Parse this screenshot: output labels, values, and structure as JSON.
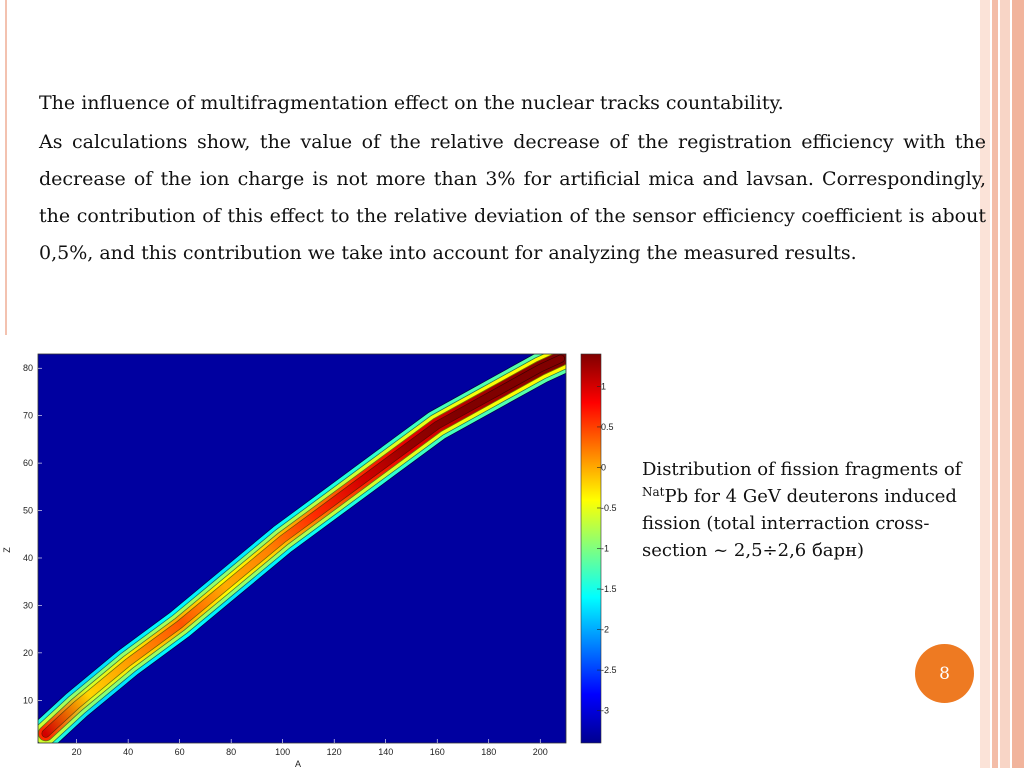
{
  "slide": {
    "heading": "The influence of multifragmentation  effect on the nuclear tracks countability.",
    "paragraph": "As calculations show, the value of the relative decrease of the registration efficiency with the decrease of the ion charge is not more than 3% for artificial mica and lavsan. Correspondingly, the contribution of this effect to the relative deviation of the sensor efficiency coefficient is about 0,5%, and this contribution we take into account for analyzing the measured results.",
    "caption_before": "Distribution of fission fragments of ",
    "caption_sup": "Nat",
    "caption_after": "Pb for 4 GeV deuterons induced fission (total interraction cross-section ~ 2,5÷2,6 барн)",
    "page_number": "8"
  },
  "colors": {
    "accent_orange": "#ee7a22",
    "stripe_light": "#f8d5c6",
    "stripe_mid": "#f1b49c",
    "plot_background": "#0000a0"
  },
  "chart_data": {
    "type": "heatmap",
    "xlabel": "A",
    "ylabel": "Z",
    "xlim": [
      5,
      210
    ],
    "ylim": [
      1,
      83
    ],
    "x_ticks": [
      20,
      40,
      60,
      80,
      100,
      120,
      140,
      160,
      180,
      200
    ],
    "y_ticks": [
      10,
      20,
      30,
      40,
      50,
      60,
      70,
      80
    ],
    "ridge": {
      "A": [
        8,
        20,
        40,
        60,
        80,
        100,
        120,
        140,
        160,
        180,
        200,
        208
      ],
      "Z": [
        3,
        9,
        18,
        26,
        35,
        44,
        52,
        60,
        68,
        74,
        80,
        82
      ],
      "intensity": [
        0.6,
        -0.6,
        -0.3,
        0.0,
        -0.4,
        -0.2,
        0.2,
        0.6,
        0.9,
        1.1,
        1.3,
        1.4
      ]
    },
    "colorbar": {
      "min": -3.4,
      "max": 1.4,
      "ticks": [
        1,
        0.5,
        0,
        -0.5,
        -1,
        -1.5,
        -2,
        -2.5,
        -3
      ],
      "tick_labels": [
        "1",
        "0.5",
        "0",
        "-0.5",
        "-1",
        "-1.5",
        "-2",
        "-2.5",
        "-3"
      ]
    }
  }
}
